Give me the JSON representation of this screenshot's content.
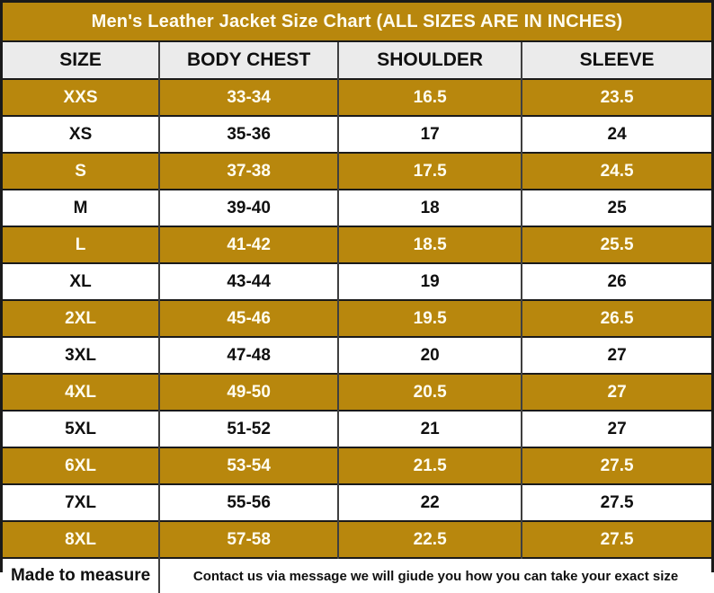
{
  "title": "Men's Leather Jacket Size Chart (ALL SIZES ARE IN INCHES)",
  "columns": [
    "SIZE",
    "BODY CHEST",
    "SHOULDER",
    "SLEEVE"
  ],
  "rows": [
    {
      "size": "XXS",
      "chest": "33-34",
      "shoulder": "16.5",
      "sleeve": "23.5",
      "highlighted": true
    },
    {
      "size": "XS",
      "chest": "35-36",
      "shoulder": "17",
      "sleeve": "24",
      "highlighted": false
    },
    {
      "size": "S",
      "chest": "37-38",
      "shoulder": "17.5",
      "sleeve": "24.5",
      "highlighted": true
    },
    {
      "size": "M",
      "chest": "39-40",
      "shoulder": "18",
      "sleeve": "25",
      "highlighted": false
    },
    {
      "size": "L",
      "chest": "41-42",
      "shoulder": "18.5",
      "sleeve": "25.5",
      "highlighted": true
    },
    {
      "size": "XL",
      "chest": "43-44",
      "shoulder": "19",
      "sleeve": "26",
      "highlighted": false
    },
    {
      "size": "2XL",
      "chest": "45-46",
      "shoulder": "19.5",
      "sleeve": "26.5",
      "highlighted": true
    },
    {
      "size": "3XL",
      "chest": "47-48",
      "shoulder": "20",
      "sleeve": "27",
      "highlighted": false
    },
    {
      "size": "4XL",
      "chest": "49-50",
      "shoulder": "20.5",
      "sleeve": "27",
      "highlighted": true
    },
    {
      "size": "5XL",
      "chest": "51-52",
      "shoulder": "21",
      "sleeve": "27",
      "highlighted": false
    },
    {
      "size": "6XL",
      "chest": "53-54",
      "shoulder": "21.5",
      "sleeve": "27.5",
      "highlighted": true
    },
    {
      "size": "7XL",
      "chest": "55-56",
      "shoulder": "22",
      "sleeve": "27.5",
      "highlighted": false
    },
    {
      "size": "8XL",
      "chest": "57-58",
      "shoulder": "22.5",
      "sleeve": "27.5",
      "highlighted": true
    }
  ],
  "footer": {
    "label": "Made to measure",
    "message": "Contact us via message we will giude you how you can take your exact size"
  },
  "colors": {
    "gold": "#B8870D",
    "text_on_gold": "#FFFDF0",
    "header_bg": "#EBEBEB",
    "text_dark": "#101010",
    "border_dark": "#1a1a1a",
    "border_gray": "#3f3f3f"
  },
  "chart_data": {
    "type": "table",
    "title": "Men's Leather Jacket Size Chart (ALL SIZES ARE IN INCHES)",
    "units": "inches",
    "columns": [
      "SIZE",
      "BODY CHEST",
      "SHOULDER",
      "SLEEVE"
    ],
    "rows": [
      [
        "XXS",
        "33-34",
        "16.5",
        "23.5"
      ],
      [
        "XS",
        "35-36",
        "17",
        "24"
      ],
      [
        "S",
        "37-38",
        "17.5",
        "24.5"
      ],
      [
        "M",
        "39-40",
        "18",
        "25"
      ],
      [
        "L",
        "41-42",
        "18.5",
        "25.5"
      ],
      [
        "XL",
        "43-44",
        "19",
        "26"
      ],
      [
        "2XL",
        "45-46",
        "19.5",
        "26.5"
      ],
      [
        "3XL",
        "47-48",
        "20",
        "27"
      ],
      [
        "4XL",
        "49-50",
        "20.5",
        "27"
      ],
      [
        "5XL",
        "51-52",
        "21",
        "27"
      ],
      [
        "6XL",
        "53-54",
        "21.5",
        "27.5"
      ],
      [
        "7XL",
        "55-56",
        "22",
        "27.5"
      ],
      [
        "8XL",
        "57-58",
        "22.5",
        "27.5"
      ],
      [
        "Made to measure",
        "Contact us via message we will giude you how you can take your exact size",
        "",
        ""
      ]
    ],
    "layout": {
      "highlight_pattern": "alternating rows starting with first data row",
      "highlight_color": "#B8870D",
      "grid": true
    }
  }
}
